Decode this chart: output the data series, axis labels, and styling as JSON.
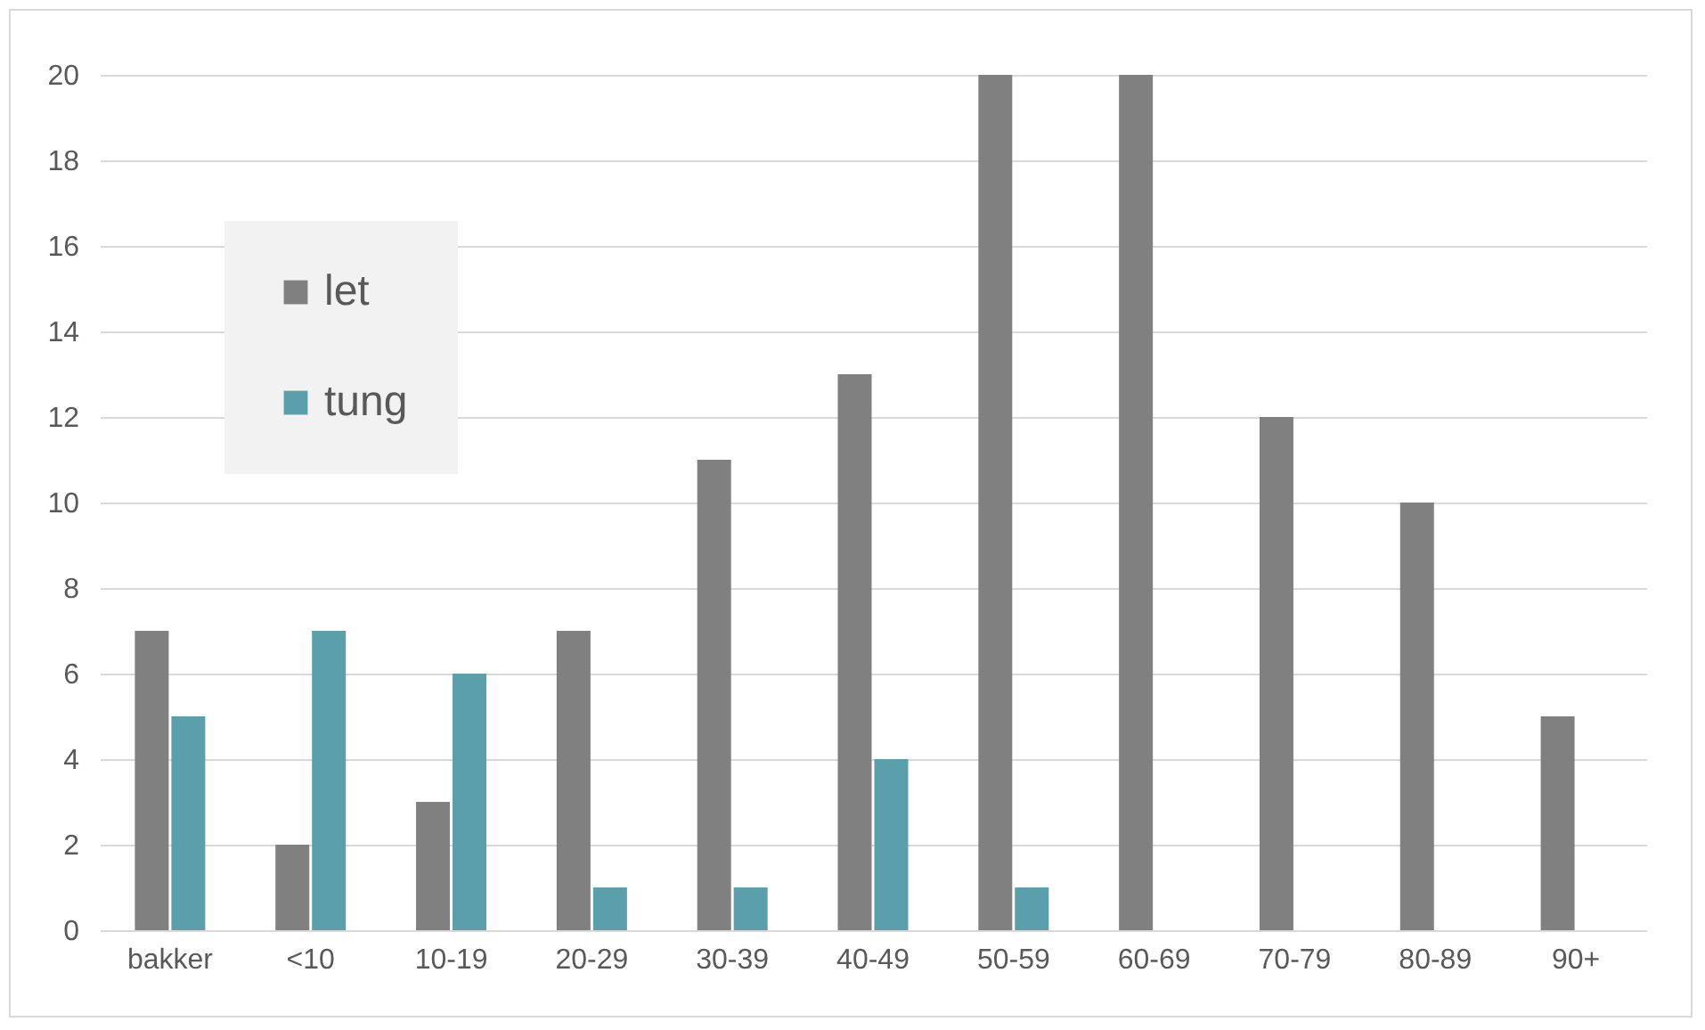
{
  "chart_data": {
    "type": "bar",
    "categories": [
      "bakker",
      "<10",
      "10-19",
      "20-29",
      "30-39",
      "40-49",
      "50-59",
      "60-69",
      "70-79",
      "80-89",
      "90+"
    ],
    "series": [
      {
        "name": "let",
        "color": "#808080",
        "values": [
          7,
          2,
          3,
          7,
          11,
          13,
          20,
          20,
          12,
          10,
          5
        ]
      },
      {
        "name": "tung",
        "color": "#5b9eac",
        "values": [
          5,
          7,
          6,
          1,
          1,
          4,
          1,
          null,
          null,
          null,
          null
        ]
      }
    ],
    "ylim": [
      0,
      20
    ],
    "yticks": [
      0,
      2,
      4,
      6,
      8,
      10,
      12,
      14,
      16,
      18,
      20
    ],
    "grid": "y",
    "legend": "top left"
  }
}
